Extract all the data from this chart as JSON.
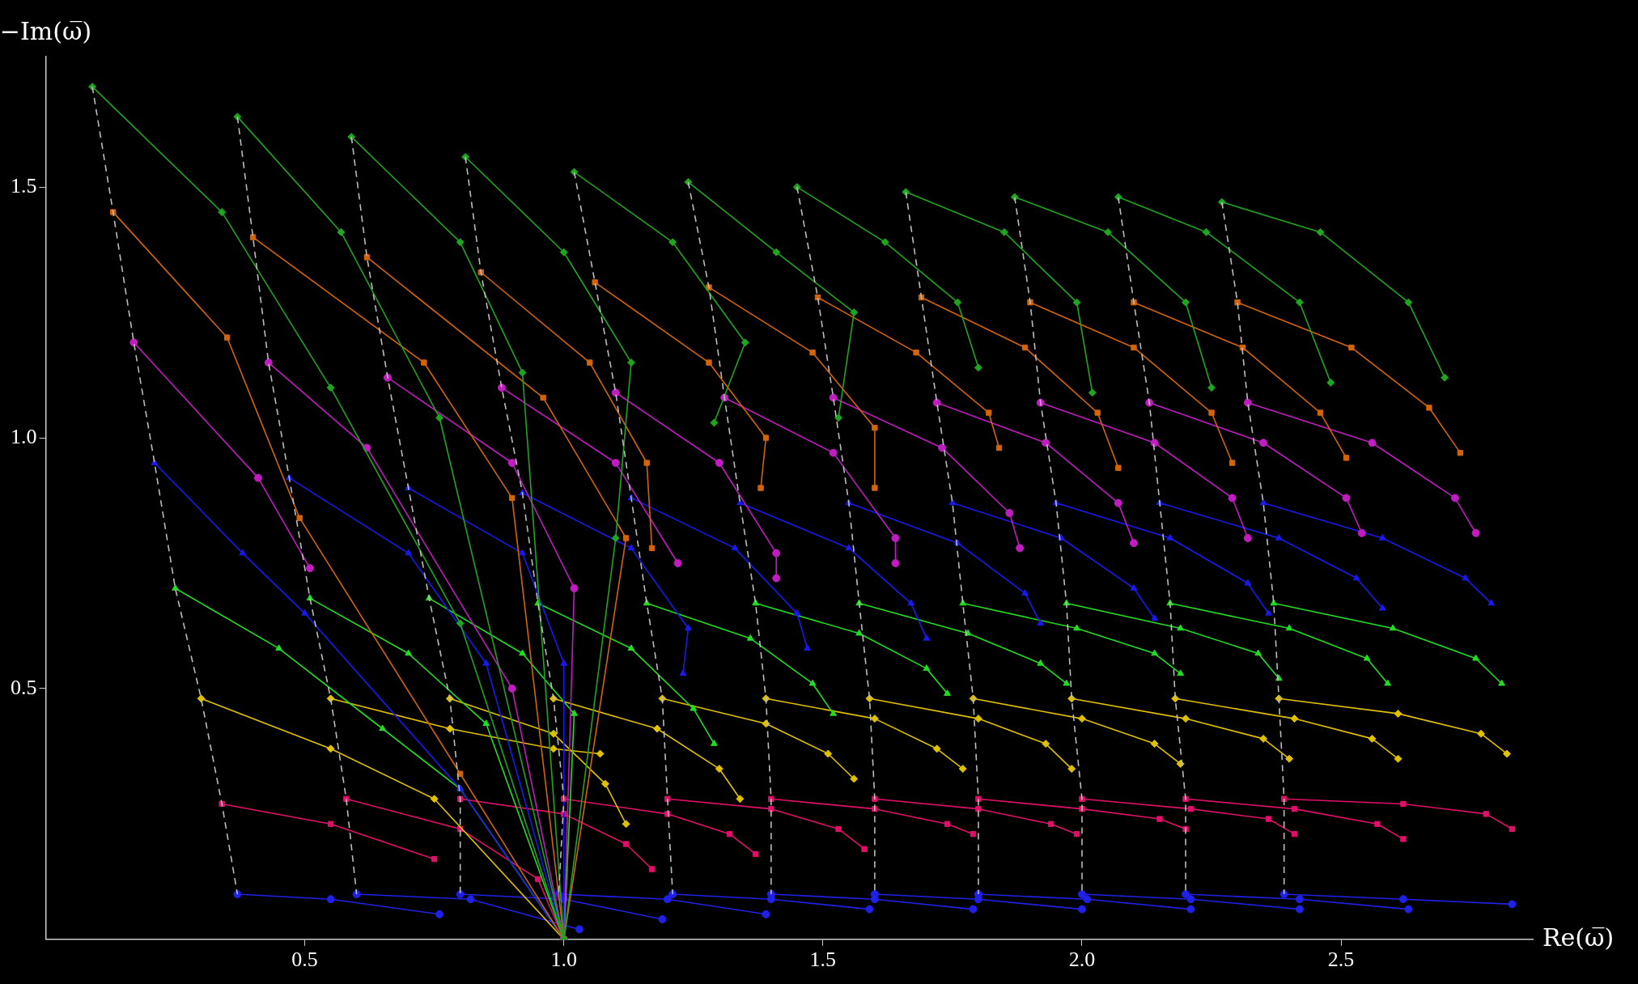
{
  "chart_data": {
    "type": "line",
    "xlabel": "Re(ω̅)",
    "ylabel": "−Im(ω̅)",
    "xlim": [
      0,
      2.87
    ],
    "ylim": [
      0,
      1.76
    ],
    "xticks": [
      0.5,
      {
        "value": 1,
        "label": "1.0"
      },
      1.5,
      {
        "value": 2,
        "label": "2.0"
      },
      2.5
    ],
    "yticks": [
      0.5,
      {
        "value": 1,
        "label": "1.0"
      },
      1.5
    ],
    "grid": false,
    "legend": false,
    "series": [
      {
        "type": "line",
        "color": "#bbbbbb",
        "marker": "none",
        "line_style": "dashed",
        "x": [
          0.09,
          0.13,
          0.17,
          0.21,
          0.25,
          0.3,
          0.34,
          0.37
        ],
        "values": [
          1.7,
          1.45,
          1.19,
          0.95,
          0.7,
          0.48,
          0.27,
          0.09
        ]
      },
      {
        "type": "line",
        "color": "#bbbbbb",
        "marker": "none",
        "line_style": "dashed",
        "x": [
          0.37,
          0.4,
          0.43,
          0.47,
          0.51,
          0.55,
          0.58,
          0.6
        ],
        "values": [
          1.64,
          1.4,
          1.15,
          0.92,
          0.68,
          0.48,
          0.28,
          0.09
        ]
      },
      {
        "type": "line",
        "color": "#bbbbbb",
        "marker": "none",
        "line_style": "dashed",
        "x": [
          0.59,
          0.62,
          0.66,
          0.7,
          0.74,
          0.78,
          0.8,
          0.8
        ],
        "values": [
          1.6,
          1.36,
          1.12,
          0.9,
          0.68,
          0.48,
          0.28,
          0.09
        ]
      },
      {
        "type": "line",
        "color": "#bbbbbb",
        "marker": "none",
        "line_style": "dashed",
        "x": [
          0.81,
          0.84,
          0.88,
          0.92,
          0.95,
          0.98,
          1.0,
          0.99
        ],
        "values": [
          1.56,
          1.33,
          1.1,
          0.89,
          0.67,
          0.48,
          0.28,
          0.09
        ]
      },
      {
        "type": "line",
        "color": "#bbbbbb",
        "marker": "none",
        "line_style": "dashed",
        "x": [
          1.02,
          1.06,
          1.1,
          1.13,
          1.16,
          1.19,
          1.2,
          1.21
        ],
        "values": [
          1.53,
          1.31,
          1.09,
          0.88,
          0.67,
          0.48,
          0.28,
          0.09
        ]
      },
      {
        "type": "line",
        "color": "#bbbbbb",
        "marker": "none",
        "line_style": "dashed",
        "x": [
          1.24,
          1.28,
          1.31,
          1.34,
          1.37,
          1.39,
          1.4,
          1.4
        ],
        "values": [
          1.51,
          1.3,
          1.08,
          0.87,
          0.67,
          0.48,
          0.28,
          0.09
        ]
      },
      {
        "type": "line",
        "color": "#bbbbbb",
        "marker": "none",
        "line_style": "dashed",
        "x": [
          1.45,
          1.49,
          1.52,
          1.55,
          1.57,
          1.59,
          1.6,
          1.6
        ],
        "values": [
          1.5,
          1.28,
          1.08,
          0.87,
          0.67,
          0.48,
          0.28,
          0.09
        ]
      },
      {
        "type": "line",
        "color": "#bbbbbb",
        "marker": "none",
        "line_style": "dashed",
        "x": [
          1.66,
          1.69,
          1.72,
          1.75,
          1.77,
          1.79,
          1.8,
          1.8
        ],
        "values": [
          1.49,
          1.28,
          1.07,
          0.87,
          0.67,
          0.48,
          0.28,
          0.09
        ]
      },
      {
        "type": "line",
        "color": "#bbbbbb",
        "marker": "none",
        "line_style": "dashed",
        "x": [
          1.87,
          1.9,
          1.92,
          1.95,
          1.97,
          1.98,
          2.0,
          2.0
        ],
        "values": [
          1.48,
          1.27,
          1.07,
          0.87,
          0.67,
          0.48,
          0.28,
          0.09
        ]
      },
      {
        "type": "line",
        "color": "#bbbbbb",
        "marker": "none",
        "line_style": "dashed",
        "x": [
          2.07,
          2.1,
          2.13,
          2.15,
          2.17,
          2.18,
          2.2,
          2.2
        ],
        "values": [
          1.48,
          1.27,
          1.07,
          0.87,
          0.67,
          0.48,
          0.28,
          0.09
        ]
      },
      {
        "type": "line",
        "color": "#bbbbbb",
        "marker": "none",
        "line_style": "dashed",
        "x": [
          2.27,
          2.3,
          2.32,
          2.35,
          2.37,
          2.38,
          2.39,
          2.39
        ],
        "values": [
          1.47,
          1.27,
          1.07,
          0.87,
          0.67,
          0.48,
          0.28,
          0.09
        ]
      },
      {
        "type": "line",
        "color": "#1fa51f",
        "marker": "diamond",
        "x": [
          0.09,
          0.34,
          0.55,
          0.8,
          1.0
        ],
        "values": [
          1.7,
          1.45,
          1.1,
          0.63,
          0
        ]
      },
      {
        "type": "line",
        "color": "#1fa51f",
        "marker": "diamond",
        "x": [
          0.37,
          0.57,
          0.76,
          1.0
        ],
        "values": [
          1.64,
          1.41,
          1.04,
          0
        ]
      },
      {
        "type": "line",
        "color": "#1fa51f",
        "marker": "diamond",
        "x": [
          0.59,
          0.8,
          0.92,
          1.0
        ],
        "values": [
          1.6,
          1.39,
          1.13,
          0
        ]
      },
      {
        "type": "line",
        "color": "#1fa51f",
        "marker": "diamond",
        "x": [
          0.81,
          1.0,
          1.13,
          1.1,
          1.0
        ],
        "values": [
          1.56,
          1.37,
          1.15,
          0.8,
          0
        ]
      },
      {
        "type": "line",
        "color": "#1fa51f",
        "marker": "diamond",
        "x": [
          1.02,
          1.21,
          1.35,
          1.29
        ],
        "values": [
          1.53,
          1.39,
          1.19,
          1.03
        ]
      },
      {
        "type": "line",
        "color": "#1fa51f",
        "marker": "diamond",
        "x": [
          1.24,
          1.41,
          1.56,
          1.53
        ],
        "values": [
          1.51,
          1.37,
          1.25,
          1.04
        ]
      },
      {
        "type": "line",
        "color": "#1fa51f",
        "marker": "diamond",
        "x": [
          1.45,
          1.62,
          1.76,
          1.8
        ],
        "values": [
          1.5,
          1.39,
          1.27,
          1.14
        ]
      },
      {
        "type": "line",
        "color": "#1fa51f",
        "marker": "diamond",
        "x": [
          1.66,
          1.85,
          1.99,
          2.02
        ],
        "values": [
          1.49,
          1.41,
          1.27,
          1.09
        ]
      },
      {
        "type": "line",
        "color": "#1fa51f",
        "marker": "diamond",
        "x": [
          1.87,
          2.05,
          2.2,
          2.25
        ],
        "values": [
          1.48,
          1.41,
          1.27,
          1.1
        ]
      },
      {
        "type": "line",
        "color": "#1fa51f",
        "marker": "diamond",
        "x": [
          2.07,
          2.24,
          2.42,
          2.48
        ],
        "values": [
          1.48,
          1.41,
          1.27,
          1.11
        ]
      },
      {
        "type": "line",
        "color": "#1fa51f",
        "marker": "diamond",
        "x": [
          2.27,
          2.46,
          2.63,
          2.7
        ],
        "values": [
          1.47,
          1.41,
          1.27,
          1.12
        ]
      },
      {
        "type": "line",
        "color": "#d4640a",
        "marker": "square",
        "x": [
          0.13,
          0.35,
          0.49,
          0.8,
          1.0
        ],
        "values": [
          1.45,
          1.2,
          0.84,
          0.33,
          0
        ]
      },
      {
        "type": "line",
        "color": "#d4640a",
        "marker": "square",
        "x": [
          0.4,
          0.73,
          0.9,
          1.0
        ],
        "values": [
          1.4,
          1.15,
          0.88,
          0
        ]
      },
      {
        "type": "line",
        "color": "#d4640a",
        "marker": "square",
        "x": [
          0.62,
          0.96,
          1.12,
          1.0
        ],
        "values": [
          1.36,
          1.08,
          0.8,
          0
        ]
      },
      {
        "type": "line",
        "color": "#d4640a",
        "marker": "square",
        "x": [
          0.84,
          1.05,
          1.16,
          1.17
        ],
        "values": [
          1.33,
          1.15,
          0.95,
          0.78
        ]
      },
      {
        "type": "line",
        "color": "#d4640a",
        "marker": "square",
        "x": [
          1.06,
          1.28,
          1.39,
          1.38
        ],
        "values": [
          1.31,
          1.15,
          1.0,
          0.9
        ]
      },
      {
        "type": "line",
        "color": "#d4640a",
        "marker": "square",
        "x": [
          1.28,
          1.48,
          1.6,
          1.6
        ],
        "values": [
          1.3,
          1.17,
          1.02,
          0.9
        ]
      },
      {
        "type": "line",
        "color": "#d4640a",
        "marker": "square",
        "x": [
          1.49,
          1.68,
          1.82,
          1.84
        ],
        "values": [
          1.28,
          1.17,
          1.05,
          0.98
        ]
      },
      {
        "type": "line",
        "color": "#d4640a",
        "marker": "square",
        "x": [
          1.69,
          1.89,
          2.03,
          2.07
        ],
        "values": [
          1.28,
          1.18,
          1.05,
          0.94
        ]
      },
      {
        "type": "line",
        "color": "#d4640a",
        "marker": "square",
        "x": [
          1.9,
          2.1,
          2.25,
          2.29
        ],
        "values": [
          1.27,
          1.18,
          1.05,
          0.95
        ]
      },
      {
        "type": "line",
        "color": "#d4640a",
        "marker": "square",
        "x": [
          2.1,
          2.31,
          2.46,
          2.51
        ],
        "values": [
          1.27,
          1.18,
          1.05,
          0.96
        ]
      },
      {
        "type": "line",
        "color": "#d4640a",
        "marker": "square",
        "x": [
          2.3,
          2.52,
          2.67,
          2.73
        ],
        "values": [
          1.27,
          1.18,
          1.06,
          0.97
        ]
      },
      {
        "type": "line",
        "color": "#c01cc0",
        "marker": "circle",
        "x": [
          0.17,
          0.41,
          0.51
        ],
        "values": [
          1.19,
          0.92,
          0.74
        ]
      },
      {
        "type": "line",
        "color": "#c01cc0",
        "marker": "circle",
        "x": [
          0.43,
          0.62,
          0.9,
          1.0
        ],
        "values": [
          1.15,
          0.98,
          0.5,
          0
        ]
      },
      {
        "type": "line",
        "color": "#c01cc0",
        "marker": "circle",
        "x": [
          0.66,
          0.9,
          1.02,
          1.0
        ],
        "values": [
          1.12,
          0.95,
          0.7,
          0
        ]
      },
      {
        "type": "line",
        "color": "#c01cc0",
        "marker": "circle",
        "x": [
          0.88,
          1.1,
          1.22
        ],
        "values": [
          1.1,
          0.95,
          0.75
        ]
      },
      {
        "type": "line",
        "color": "#c01cc0",
        "marker": "circle",
        "x": [
          1.1,
          1.3,
          1.41,
          1.41
        ],
        "values": [
          1.09,
          0.95,
          0.77,
          0.72
        ]
      },
      {
        "type": "line",
        "color": "#c01cc0",
        "marker": "circle",
        "x": [
          1.31,
          1.52,
          1.64,
          1.64
        ],
        "values": [
          1.08,
          0.97,
          0.8,
          0.75
        ]
      },
      {
        "type": "line",
        "color": "#c01cc0",
        "marker": "circle",
        "x": [
          1.52,
          1.73,
          1.86,
          1.88
        ],
        "values": [
          1.08,
          0.98,
          0.85,
          0.78
        ]
      },
      {
        "type": "line",
        "color": "#c01cc0",
        "marker": "circle",
        "x": [
          1.72,
          1.93,
          2.07,
          2.1
        ],
        "values": [
          1.07,
          0.99,
          0.87,
          0.79
        ]
      },
      {
        "type": "line",
        "color": "#c01cc0",
        "marker": "circle",
        "x": [
          1.92,
          2.14,
          2.29,
          2.32
        ],
        "values": [
          1.07,
          0.99,
          0.88,
          0.8
        ]
      },
      {
        "type": "line",
        "color": "#c01cc0",
        "marker": "circle",
        "x": [
          2.13,
          2.35,
          2.51,
          2.54
        ],
        "values": [
          1.07,
          0.99,
          0.88,
          0.81
        ]
      },
      {
        "type": "line",
        "color": "#c01cc0",
        "marker": "circle",
        "x": [
          2.32,
          2.56,
          2.72,
          2.76
        ],
        "values": [
          1.07,
          0.99,
          0.88,
          0.81
        ]
      },
      {
        "type": "line",
        "color": "#1a1aee",
        "marker": "triangle",
        "x": [
          0.21,
          0.38,
          0.5,
          0.8,
          1.0
        ],
        "values": [
          0.95,
          0.77,
          0.65,
          0.3,
          0
        ]
      },
      {
        "type": "line",
        "color": "#1a1aee",
        "marker": "triangle",
        "x": [
          0.47,
          0.7,
          0.85,
          1.0
        ],
        "values": [
          0.92,
          0.77,
          0.55,
          0
        ]
      },
      {
        "type": "line",
        "color": "#1a1aee",
        "marker": "triangle",
        "x": [
          0.7,
          0.92,
          1.0,
          1.0
        ],
        "values": [
          0.9,
          0.77,
          0.55,
          0
        ]
      },
      {
        "type": "line",
        "color": "#1a1aee",
        "marker": "triangle",
        "x": [
          0.92,
          1.13,
          1.24,
          1.23
        ],
        "values": [
          0.89,
          0.78,
          0.62,
          0.53
        ]
      },
      {
        "type": "line",
        "color": "#1a1aee",
        "marker": "triangle",
        "x": [
          1.13,
          1.33,
          1.45,
          1.47
        ],
        "values": [
          0.88,
          0.78,
          0.65,
          0.58
        ]
      },
      {
        "type": "line",
        "color": "#1a1aee",
        "marker": "triangle",
        "x": [
          1.34,
          1.55,
          1.67,
          1.7
        ],
        "values": [
          0.87,
          0.78,
          0.67,
          0.6
        ]
      },
      {
        "type": "line",
        "color": "#1a1aee",
        "marker": "triangle",
        "x": [
          1.55,
          1.76,
          1.89,
          1.92
        ],
        "values": [
          0.87,
          0.79,
          0.69,
          0.63
        ]
      },
      {
        "type": "line",
        "color": "#1a1aee",
        "marker": "triangle",
        "x": [
          1.75,
          1.96,
          2.1,
          2.14
        ],
        "values": [
          0.87,
          0.8,
          0.7,
          0.64
        ]
      },
      {
        "type": "line",
        "color": "#1a1aee",
        "marker": "triangle",
        "x": [
          1.95,
          2.17,
          2.32,
          2.36
        ],
        "values": [
          0.87,
          0.8,
          0.71,
          0.65
        ]
      },
      {
        "type": "line",
        "color": "#1a1aee",
        "marker": "triangle",
        "x": [
          2.15,
          2.38,
          2.53,
          2.58
        ],
        "values": [
          0.87,
          0.8,
          0.72,
          0.66
        ]
      },
      {
        "type": "line",
        "color": "#1a1aee",
        "marker": "triangle",
        "x": [
          2.35,
          2.58,
          2.74,
          2.79
        ],
        "values": [
          0.87,
          0.8,
          0.72,
          0.67
        ]
      },
      {
        "type": "line",
        "color": "#22dd22",
        "marker": "triangle",
        "x": [
          0.25,
          0.45,
          0.65,
          0.8,
          1.0
        ],
        "values": [
          0.7,
          0.58,
          0.42,
          0.3,
          0
        ]
      },
      {
        "type": "line",
        "color": "#22dd22",
        "marker": "triangle",
        "x": [
          0.51,
          0.7,
          0.85,
          1.0
        ],
        "values": [
          0.68,
          0.57,
          0.43,
          0
        ]
      },
      {
        "type": "line",
        "color": "#22dd22",
        "marker": "triangle",
        "x": [
          0.74,
          0.92,
          1.02,
          1.0
        ],
        "values": [
          0.68,
          0.57,
          0.45,
          0
        ]
      },
      {
        "type": "line",
        "color": "#22dd22",
        "marker": "triangle",
        "x": [
          0.95,
          1.13,
          1.25,
          1.29
        ],
        "values": [
          0.67,
          0.58,
          0.46,
          0.39
        ]
      },
      {
        "type": "line",
        "color": "#22dd22",
        "marker": "triangle",
        "x": [
          1.16,
          1.36,
          1.48,
          1.52
        ],
        "values": [
          0.67,
          0.6,
          0.51,
          0.45
        ]
      },
      {
        "type": "line",
        "color": "#22dd22",
        "marker": "triangle",
        "x": [
          1.37,
          1.57,
          1.7,
          1.74
        ],
        "values": [
          0.67,
          0.61,
          0.54,
          0.49
        ]
      },
      {
        "type": "line",
        "color": "#22dd22",
        "marker": "triangle",
        "x": [
          1.57,
          1.78,
          1.92,
          1.97
        ],
        "values": [
          0.67,
          0.61,
          0.55,
          0.51
        ]
      },
      {
        "type": "line",
        "color": "#22dd22",
        "marker": "triangle",
        "x": [
          1.77,
          1.99,
          2.14,
          2.19
        ],
        "values": [
          0.67,
          0.62,
          0.57,
          0.53
        ]
      },
      {
        "type": "line",
        "color": "#22dd22",
        "marker": "triangle",
        "x": [
          1.97,
          2.19,
          2.34,
          2.38
        ],
        "values": [
          0.67,
          0.62,
          0.57,
          0.52
        ]
      },
      {
        "type": "line",
        "color": "#22dd22",
        "marker": "triangle",
        "x": [
          2.17,
          2.4,
          2.55,
          2.59
        ],
        "values": [
          0.67,
          0.62,
          0.56,
          0.51
        ]
      },
      {
        "type": "line",
        "color": "#22dd22",
        "marker": "triangle",
        "x": [
          2.37,
          2.6,
          2.76,
          2.81
        ],
        "values": [
          0.67,
          0.62,
          0.56,
          0.51
        ]
      },
      {
        "type": "line",
        "color": "#e0c000",
        "marker": "diamond",
        "x": [
          0.3,
          0.55,
          0.75,
          1.0
        ],
        "values": [
          0.48,
          0.38,
          0.28,
          0
        ]
      },
      {
        "type": "line",
        "color": "#e0c000",
        "marker": "diamond",
        "x": [
          0.55,
          0.78,
          0.98,
          1.07
        ],
        "values": [
          0.48,
          0.42,
          0.38,
          0.37
        ]
      },
      {
        "type": "line",
        "color": "#e0c000",
        "marker": "diamond",
        "x": [
          0.78,
          0.98,
          1.08,
          1.12
        ],
        "values": [
          0.48,
          0.41,
          0.31,
          0.23
        ]
      },
      {
        "type": "line",
        "color": "#e0c000",
        "marker": "diamond",
        "x": [
          0.98,
          1.18,
          1.3,
          1.34
        ],
        "values": [
          0.48,
          0.42,
          0.34,
          0.28
        ]
      },
      {
        "type": "line",
        "color": "#e0c000",
        "marker": "diamond",
        "x": [
          1.19,
          1.39,
          1.51,
          1.56
        ],
        "values": [
          0.48,
          0.43,
          0.37,
          0.32
        ]
      },
      {
        "type": "line",
        "color": "#e0c000",
        "marker": "diamond",
        "x": [
          1.39,
          1.6,
          1.72,
          1.77
        ],
        "values": [
          0.48,
          0.44,
          0.38,
          0.34
        ]
      },
      {
        "type": "line",
        "color": "#e0c000",
        "marker": "diamond",
        "x": [
          1.59,
          1.8,
          1.93,
          1.98
        ],
        "values": [
          0.48,
          0.44,
          0.39,
          0.34
        ]
      },
      {
        "type": "line",
        "color": "#e0c000",
        "marker": "diamond",
        "x": [
          1.79,
          2.0,
          2.14,
          2.19
        ],
        "values": [
          0.48,
          0.44,
          0.39,
          0.35
        ]
      },
      {
        "type": "line",
        "color": "#e0c000",
        "marker": "diamond",
        "x": [
          1.98,
          2.2,
          2.35,
          2.4
        ],
        "values": [
          0.48,
          0.44,
          0.4,
          0.36
        ]
      },
      {
        "type": "line",
        "color": "#e0c000",
        "marker": "diamond",
        "x": [
          2.18,
          2.41,
          2.56,
          2.61
        ],
        "values": [
          0.48,
          0.44,
          0.4,
          0.36
        ]
      },
      {
        "type": "line",
        "color": "#e0c000",
        "marker": "diamond",
        "x": [
          2.38,
          2.61,
          2.77,
          2.82
        ],
        "values": [
          0.48,
          0.45,
          0.41,
          0.37
        ]
      },
      {
        "type": "line",
        "color": "#e0106a",
        "marker": "square",
        "x": [
          0.34,
          0.55,
          0.75
        ],
        "values": [
          0.27,
          0.23,
          0.16
        ]
      },
      {
        "type": "line",
        "color": "#e0106a",
        "marker": "square",
        "x": [
          0.58,
          0.8,
          0.95,
          1.0
        ],
        "values": [
          0.28,
          0.22,
          0.12,
          0
        ]
      },
      {
        "type": "line",
        "color": "#e0106a",
        "marker": "square",
        "x": [
          0.8,
          1.0,
          1.12,
          1.17
        ],
        "values": [
          0.28,
          0.25,
          0.19,
          0.14
        ]
      },
      {
        "type": "line",
        "color": "#e0106a",
        "marker": "square",
        "x": [
          1.0,
          1.2,
          1.32,
          1.37
        ],
        "values": [
          0.28,
          0.25,
          0.21,
          0.17
        ]
      },
      {
        "type": "line",
        "color": "#e0106a",
        "marker": "square",
        "x": [
          1.2,
          1.4,
          1.53,
          1.58
        ],
        "values": [
          0.28,
          0.26,
          0.22,
          0.18
        ]
      },
      {
        "type": "line",
        "color": "#e0106a",
        "marker": "square",
        "x": [
          1.4,
          1.6,
          1.74,
          1.79
        ],
        "values": [
          0.28,
          0.26,
          0.23,
          0.21
        ]
      },
      {
        "type": "line",
        "color": "#e0106a",
        "marker": "square",
        "x": [
          1.6,
          1.8,
          1.94,
          1.99
        ],
        "values": [
          0.28,
          0.26,
          0.23,
          0.21
        ]
      },
      {
        "type": "line",
        "color": "#e0106a",
        "marker": "square",
        "x": [
          1.8,
          2.0,
          2.15,
          2.2
        ],
        "values": [
          0.28,
          0.26,
          0.24,
          0.22
        ]
      },
      {
        "type": "line",
        "color": "#e0106a",
        "marker": "square",
        "x": [
          2.0,
          2.21,
          2.36,
          2.41
        ],
        "values": [
          0.28,
          0.26,
          0.24,
          0.21
        ]
      },
      {
        "type": "line",
        "color": "#e0106a",
        "marker": "square",
        "x": [
          2.2,
          2.41,
          2.57,
          2.62
        ],
        "values": [
          0.28,
          0.26,
          0.23,
          0.2
        ]
      },
      {
        "type": "line",
        "color": "#e0106a",
        "marker": "square",
        "x": [
          2.39,
          2.62,
          2.78,
          2.83
        ],
        "values": [
          0.28,
          0.27,
          0.25,
          0.22
        ]
      },
      {
        "type": "line",
        "color": "#2020e6",
        "marker": "circle",
        "x": [
          0.37,
          0.55,
          0.76
        ],
        "values": [
          0.09,
          0.08,
          0.05
        ]
      },
      {
        "type": "line",
        "color": "#2020e6",
        "marker": "circle",
        "x": [
          0.6,
          0.82,
          1.03
        ],
        "values": [
          0.09,
          0.08,
          0.02
        ]
      },
      {
        "type": "line",
        "color": "#2020e6",
        "marker": "circle",
        "x": [
          0.8,
          1.0,
          1.19
        ],
        "values": [
          0.09,
          0.08,
          0.04
        ]
      },
      {
        "type": "line",
        "color": "#2020e6",
        "marker": "circle",
        "x": [
          0.99,
          1.2,
          1.39
        ],
        "values": [
          0.09,
          0.08,
          0.05
        ]
      },
      {
        "type": "line",
        "color": "#2020e6",
        "marker": "circle",
        "x": [
          1.21,
          1.4,
          1.59
        ],
        "values": [
          0.09,
          0.08,
          0.06
        ]
      },
      {
        "type": "line",
        "color": "#2020e6",
        "marker": "circle",
        "x": [
          1.4,
          1.6,
          1.79
        ],
        "values": [
          0.09,
          0.08,
          0.06
        ]
      },
      {
        "type": "line",
        "color": "#2020e6",
        "marker": "circle",
        "x": [
          1.6,
          1.8,
          2.0
        ],
        "values": [
          0.09,
          0.08,
          0.06
        ]
      },
      {
        "type": "line",
        "color": "#2020e6",
        "marker": "circle",
        "x": [
          1.8,
          2.01,
          2.21
        ],
        "values": [
          0.09,
          0.08,
          0.06
        ]
      },
      {
        "type": "line",
        "color": "#2020e6",
        "marker": "circle",
        "x": [
          2.0,
          2.21,
          2.42
        ],
        "values": [
          0.09,
          0.08,
          0.06
        ]
      },
      {
        "type": "line",
        "color": "#2020e6",
        "marker": "circle",
        "x": [
          2.2,
          2.42,
          2.63
        ],
        "values": [
          0.09,
          0.08,
          0.06
        ]
      },
      {
        "type": "line",
        "color": "#2020e6",
        "marker": "circle",
        "x": [
          2.39,
          2.62,
          2.83
        ],
        "values": [
          0.09,
          0.08,
          0.07
        ]
      }
    ]
  }
}
